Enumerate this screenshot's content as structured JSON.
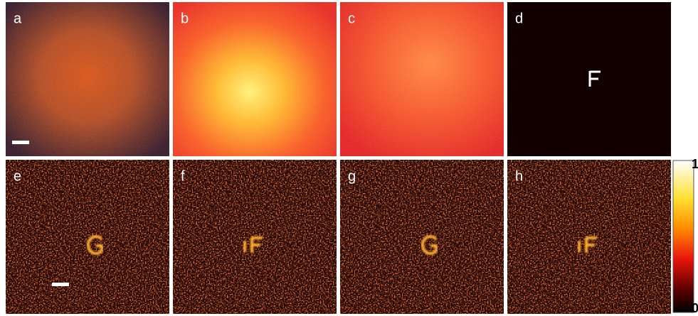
{
  "panels": [
    {
      "label": "a"
    },
    {
      "label": "b"
    },
    {
      "label": "c"
    },
    {
      "label": "d"
    },
    {
      "label": "e"
    },
    {
      "label": "f"
    },
    {
      "label": "g"
    },
    {
      "label": "h"
    }
  ],
  "colorbar": {
    "ticks": [
      0,
      1
    ]
  }
}
